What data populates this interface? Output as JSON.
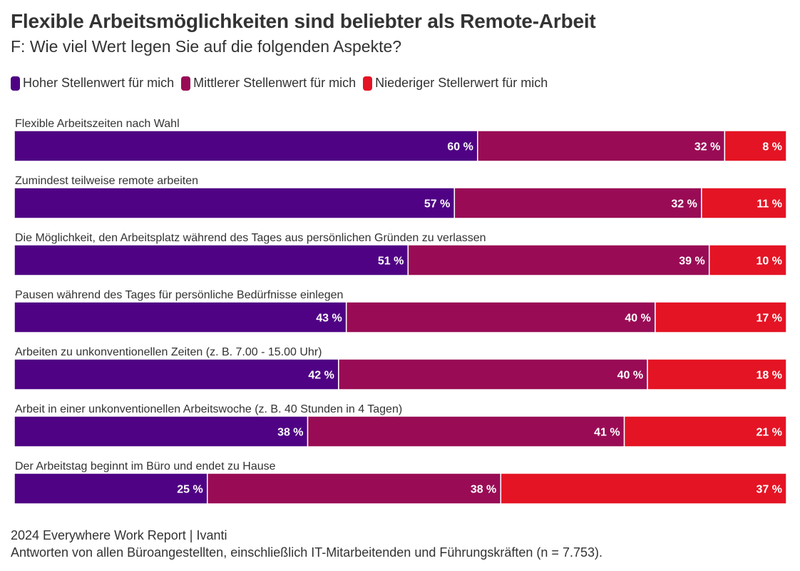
{
  "chart_data": {
    "type": "bar",
    "orientation": "horizontal",
    "stacked": true,
    "percent_stacked": true,
    "title": "Flexible Arbeitsmöglichkeiten sind beliebter als Remote-Arbeit",
    "subtitle": "F: Wie viel Wert legen Sie auf die folgenden Aspekte?",
    "xlabel": "",
    "ylabel": "",
    "xlim": [
      0,
      100
    ],
    "grid": false,
    "legend_position": "top-left",
    "value_suffix": " %",
    "categories": [
      "Flexible Arbeitszeiten nach Wahl",
      "Zumindest teilweise remote arbeiten",
      "Die Möglichkeit, den Arbeitsplatz während des Tages aus persönlichen Gründen zu verlassen",
      "Pausen während des Tages für persönliche Bedürfnisse einlegen",
      "Arbeiten zu unkonventionellen Zeiten (z. B. 7.00 - 15.00 Uhr)",
      "Arbeit in einer unkonventionellen Arbeitswoche (z. B. 40 Stunden in 4 Tagen)",
      "Der Arbeitstag beginnt im Büro und endet zu Hause"
    ],
    "series": [
      {
        "name": "Hoher Stellenwert für mich",
        "color": "#4f0384",
        "values": [
          60,
          57,
          51,
          43,
          42,
          38,
          25
        ]
      },
      {
        "name": "Mittlerer Stellenwert für mich",
        "color": "#990c55",
        "values": [
          32,
          32,
          39,
          40,
          40,
          41,
          38
        ]
      },
      {
        "name": "Niederiger Stellerwert für mich",
        "color": "#e41424",
        "values": [
          8,
          11,
          10,
          17,
          18,
          21,
          37
        ]
      }
    ]
  },
  "footer": {
    "source": "2024 Everywhere Work Report | Ivanti",
    "note": "Antworten von allen Büroangestellten, einschließlich IT-Mitarbeitenden und Führungskräften (n = 7.753)."
  }
}
